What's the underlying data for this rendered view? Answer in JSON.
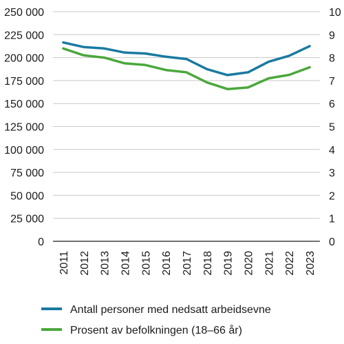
{
  "chart_data": {
    "type": "line",
    "x": [
      "2011",
      "2012",
      "2013",
      "2014",
      "2015",
      "2016",
      "2017",
      "2018",
      "2019",
      "2020",
      "2021",
      "2022",
      "2023"
    ],
    "left_axis": {
      "ylim": [
        0,
        250000
      ],
      "ticks": [
        0,
        25000,
        50000,
        75000,
        100000,
        125000,
        150000,
        175000,
        200000,
        225000,
        250000
      ],
      "tick_labels": [
        "0",
        "25 000",
        "50 000",
        "75 000",
        "100 000",
        "125 000",
        "150 000",
        "175 000",
        "200 000",
        "225 000",
        "250 000"
      ]
    },
    "right_axis": {
      "ylim": [
        0,
        10
      ],
      "ticks": [
        0,
        1,
        2,
        3,
        4,
        5,
        6,
        7,
        8,
        9,
        10
      ],
      "tick_labels": [
        "0",
        "1",
        "2",
        "3",
        "4",
        "5",
        "6",
        "7",
        "8",
        "9",
        "10"
      ]
    },
    "series": [
      {
        "name": "Antall personer med nedsatt arbeidsevne",
        "axis": "left",
        "color": "#1a7aa0",
        "values": [
          216500,
          211500,
          210000,
          205500,
          204500,
          201000,
          198500,
          187500,
          181000,
          184000,
          195500,
          202000,
          212500
        ]
      },
      {
        "name": "Prosent av befolkningen (18–66 år)",
        "axis": "right",
        "color": "#4aa83b",
        "values": [
          8.4,
          8.1,
          8.0,
          7.75,
          7.68,
          7.46,
          7.36,
          6.92,
          6.63,
          6.7,
          7.1,
          7.25,
          7.58
        ]
      }
    ],
    "grid": true,
    "legend_placement": "bottom"
  }
}
